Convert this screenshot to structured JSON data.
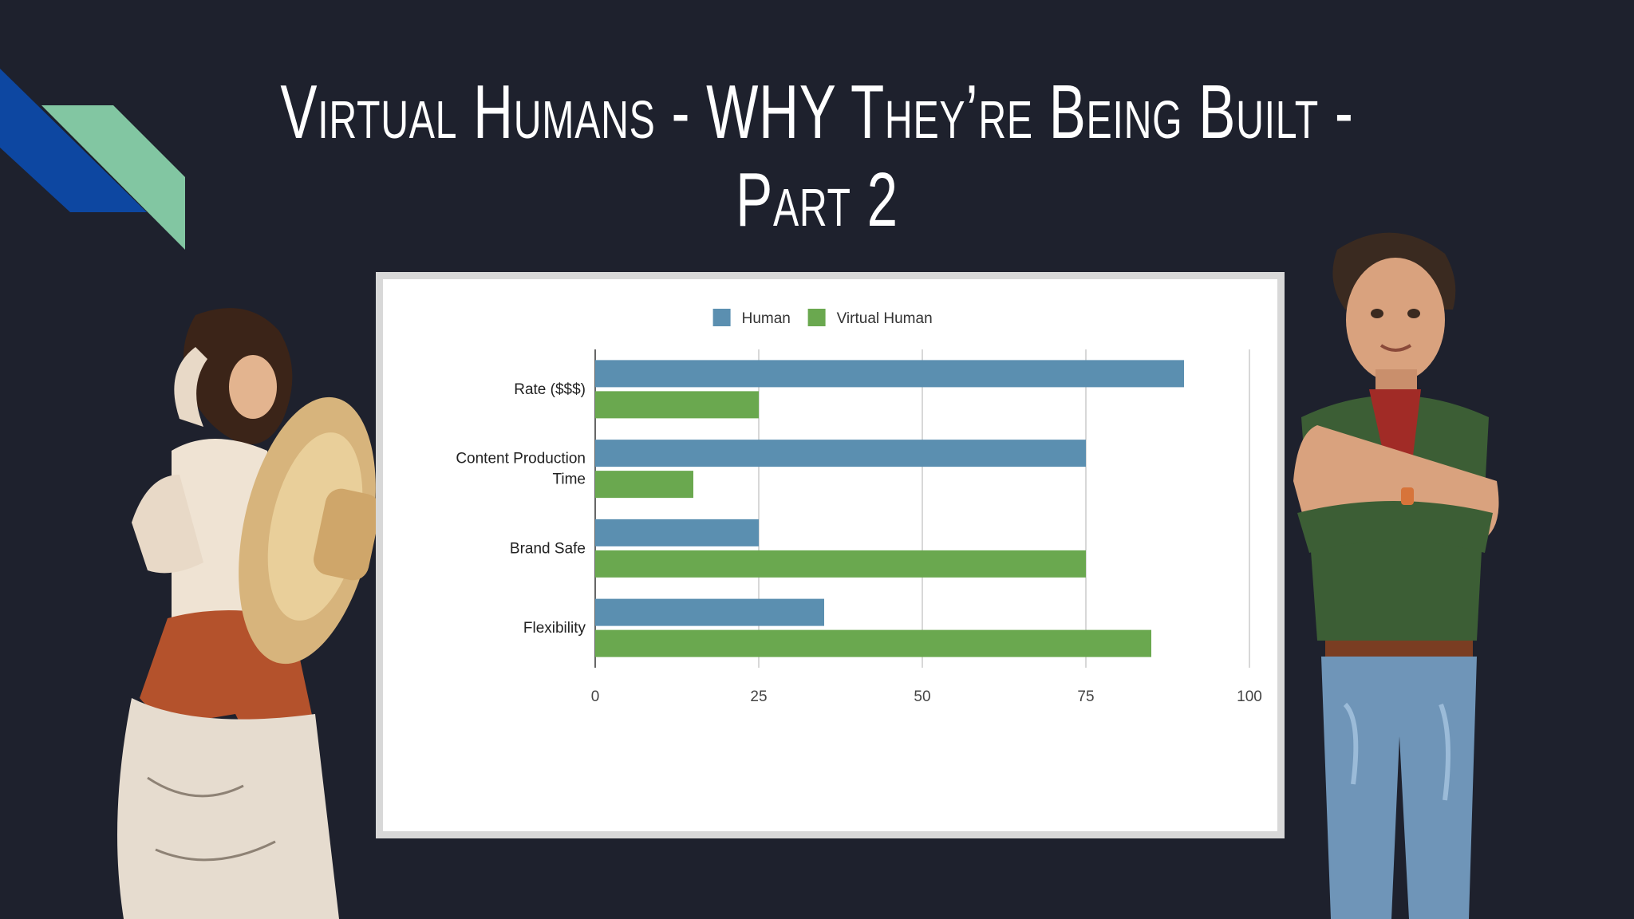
{
  "slide": {
    "title": "Virtual Humans - WHY They’re Being Built - Part 2"
  },
  "colors": {
    "background": "#1e212d",
    "accent_blue": "#0d47a1",
    "accent_green": "#82c6a2",
    "human": "#5b8fb0",
    "virtual_human": "#6aa84f"
  },
  "figures": {
    "left": "woman-with-straw-hat-photo",
    "right": "virtual-human-avatar-illustration"
  },
  "chart_data": {
    "type": "bar",
    "orientation": "horizontal",
    "categories": [
      "Rate ($$$)",
      "Content Production Time",
      "Brand Safe",
      "Flexibility"
    ],
    "category_lines": [
      [
        "Rate ($$$)"
      ],
      [
        "Content Production",
        "Time"
      ],
      [
        "Brand Safe"
      ],
      [
        "Flexibility"
      ]
    ],
    "series": [
      {
        "name": "Human",
        "color": "#5b8fb0",
        "values": [
          90,
          75,
          25,
          35
        ]
      },
      {
        "name": "Virtual Human",
        "color": "#6aa84f",
        "values": [
          25,
          15,
          75,
          85
        ]
      }
    ],
    "xlim": [
      0,
      100
    ],
    "xticks": [
      "0",
      "25",
      "50",
      "75",
      "100"
    ],
    "xtick_values": [
      0,
      25,
      50,
      75,
      100
    ],
    "grid": true,
    "legend_position": "top"
  }
}
